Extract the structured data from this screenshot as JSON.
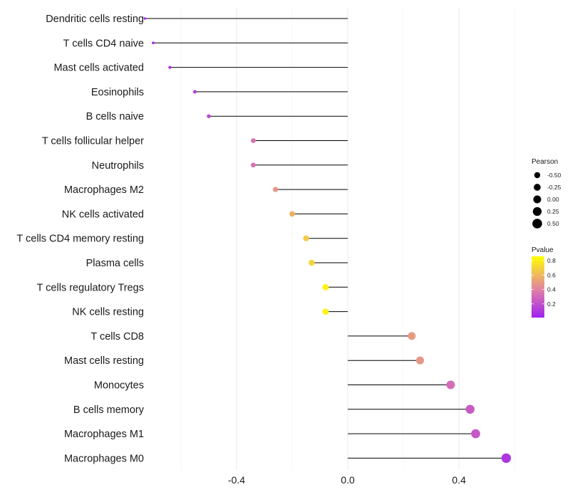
{
  "chart_data": {
    "type": "lollipop",
    "title": "",
    "xlabel": "",
    "ylabel": "",
    "xlim": [
      -0.7,
      0.62
    ],
    "xticks": [
      -0.4,
      0.0,
      0.4
    ],
    "xtick_labels": [
      "-0.4",
      "0.0",
      "0.4"
    ],
    "grid": true,
    "categories": [
      "Dendritic cells resting",
      "T cells CD4 naive",
      "Mast cells activated",
      "Eosinophils",
      "B cells naive",
      "T cells follicular helper",
      "Neutrophils",
      "Macrophages M2",
      "NK cells activated",
      "T cells CD4 memory resting",
      "Plasma cells",
      "T cells regulatory  Tregs",
      "NK cells resting",
      "T cells CD8",
      "Mast cells resting",
      "Monocytes",
      "B cells memory",
      "Macrophages M1",
      "Macrophages M0"
    ],
    "pearson": [
      -0.73,
      -0.7,
      -0.64,
      -0.55,
      -0.5,
      -0.34,
      -0.34,
      -0.26,
      -0.2,
      -0.15,
      -0.13,
      -0.08,
      -0.08,
      0.23,
      0.26,
      0.37,
      0.44,
      0.46,
      0.57
    ],
    "pvalue": [
      0.03,
      0.05,
      0.08,
      0.14,
      0.17,
      0.34,
      0.34,
      0.48,
      0.58,
      0.67,
      0.7,
      0.82,
      0.82,
      0.5,
      0.48,
      0.32,
      0.25,
      0.23,
      0.1
    ],
    "legend": {
      "size_title": "Pearson",
      "size_values": [
        -0.5,
        -0.25,
        0.0,
        0.25,
        0.5
      ],
      "size_labels": [
        "-0.50",
        "-0.25",
        "0.00",
        "0.25",
        "0.50"
      ],
      "color_title": "Pvalue",
      "color_values": [
        0.8,
        0.6,
        0.4,
        0.2
      ],
      "color_labels": [
        "0.8",
        "0.6",
        "0.4",
        "0.2"
      ],
      "color_range": [
        0.01,
        0.86
      ],
      "color_low": "#a020f0",
      "color_mid": "#e07fa8",
      "color_high": "#ffff00",
      "placement": "right"
    },
    "segment_color": "#000000",
    "grid_color": "#ebebeb"
  }
}
